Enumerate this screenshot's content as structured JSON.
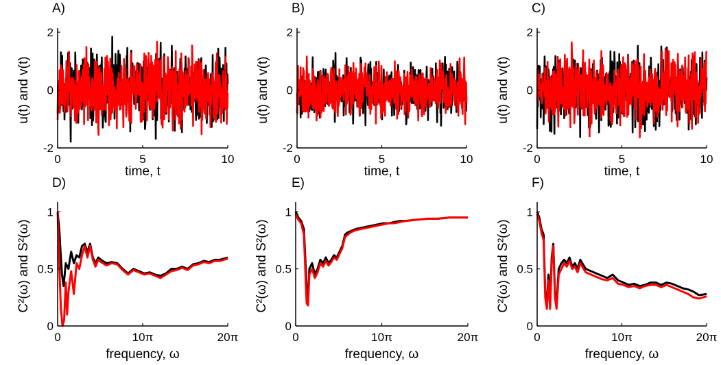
{
  "chart_data": [
    {
      "panel": "A)",
      "type": "line",
      "xlabel": "time, t",
      "ylabel": "u(t) and v(t)",
      "xlim": [
        0,
        10
      ],
      "ylim": [
        -2,
        2
      ],
      "xticks": [
        "0",
        "5",
        "10"
      ],
      "yticks": [
        "-2",
        "0",
        "2"
      ],
      "x": [
        0,
        10
      ],
      "series": [
        {
          "color": "#000000",
          "kind": "noise",
          "amplitude": 0.65,
          "seed": 11
        },
        {
          "color": "#ff0000",
          "kind": "noise",
          "amplitude": 0.6,
          "seed": 12
        }
      ]
    },
    {
      "panel": "B)",
      "type": "line",
      "xlabel": "time, t",
      "ylabel": "u(t) and v(t)",
      "xlim": [
        0,
        10
      ],
      "ylim": [
        -2,
        2
      ],
      "xticks": [
        "0",
        "5",
        "10"
      ],
      "yticks": [
        "-2",
        "0",
        "2"
      ],
      "x": [
        0,
        10
      ],
      "series": [
        {
          "color": "#000000",
          "kind": "noise",
          "amplitude": 0.45,
          "seed": 21
        },
        {
          "color": "#ff0000",
          "kind": "noise",
          "amplitude": 0.45,
          "seed": 22
        }
      ]
    },
    {
      "panel": "C)",
      "type": "line",
      "xlabel": "time, t",
      "ylabel": "u(t) and v(t)",
      "xlim": [
        0,
        10
      ],
      "ylim": [
        -2,
        2
      ],
      "xticks": [
        "0",
        "5",
        "10"
      ],
      "yticks": [
        "-2",
        "0",
        "2"
      ],
      "x": [
        0,
        10
      ],
      "series": [
        {
          "color": "#000000",
          "kind": "noise",
          "amplitude": 0.6,
          "seed": 31
        },
        {
          "color": "#ff0000",
          "kind": "noise",
          "amplitude": 0.6,
          "seed": 32
        }
      ]
    },
    {
      "panel": "D)",
      "type": "line",
      "xlabel": "frequency, ω",
      "ylabel": "C²(ω) and S²(ω)",
      "xlim": [
        0,
        62.83
      ],
      "ylim": [
        0,
        1.05
      ],
      "xticks": [
        "0",
        "10π",
        "20π"
      ],
      "yticks": [
        "0",
        "0.5",
        "1"
      ],
      "series": [
        {
          "color": "#000000",
          "x": [
            0,
            0.6,
            1.2,
            1.6,
            2.2,
            3,
            4,
            5,
            6,
            7,
            8,
            9,
            10,
            11,
            12,
            13,
            14,
            15,
            16,
            18,
            20,
            22,
            24,
            26,
            28,
            30,
            32,
            34,
            36,
            38,
            40,
            42,
            44,
            46,
            48,
            50,
            52,
            54,
            56,
            58,
            60,
            62.83
          ],
          "values": [
            1.0,
            0.85,
            0.6,
            0.45,
            0.35,
            0.55,
            0.5,
            0.65,
            0.55,
            0.62,
            0.6,
            0.7,
            0.72,
            0.65,
            0.72,
            0.6,
            0.55,
            0.6,
            0.58,
            0.55,
            0.56,
            0.55,
            0.5,
            0.46,
            0.5,
            0.48,
            0.46,
            0.47,
            0.45,
            0.44,
            0.46,
            0.5,
            0.5,
            0.52,
            0.5,
            0.54,
            0.55,
            0.57,
            0.56,
            0.58,
            0.58,
            0.6
          ]
        },
        {
          "color": "#ff0000",
          "x": [
            0,
            0.6,
            1.2,
            1.8,
            2.4,
            3,
            3.5,
            4,
            5,
            6,
            7,
            8,
            9,
            10,
            11,
            12,
            13,
            14,
            15,
            16,
            18,
            20,
            22,
            24,
            26,
            28,
            30,
            32,
            34,
            36,
            38,
            40,
            42,
            44,
            46,
            48,
            50,
            52,
            54,
            56,
            58,
            60,
            62.83
          ],
          "values": [
            1.0,
            0.55,
            0.15,
            0.0,
            0.05,
            0.38,
            0.1,
            0.3,
            0.48,
            0.28,
            0.55,
            0.5,
            0.62,
            0.7,
            0.6,
            0.7,
            0.58,
            0.52,
            0.58,
            0.56,
            0.53,
            0.55,
            0.54,
            0.49,
            0.45,
            0.49,
            0.47,
            0.45,
            0.46,
            0.44,
            0.42,
            0.45,
            0.48,
            0.49,
            0.51,
            0.49,
            0.53,
            0.54,
            0.56,
            0.55,
            0.57,
            0.57,
            0.59
          ]
        }
      ]
    },
    {
      "panel": "E)",
      "type": "line",
      "xlabel": "frequency, ω",
      "ylabel": "C²(ω) and S²(ω)",
      "xlim": [
        0,
        62.83
      ],
      "ylim": [
        0,
        1.05
      ],
      "xticks": [
        "0",
        "10π",
        "20π"
      ],
      "yticks": [
        "0",
        "0.5",
        "1"
      ],
      "series": [
        {
          "color": "#000000",
          "x": [
            0,
            1,
            2,
            3,
            3.5,
            4,
            4.5,
            5,
            6,
            7,
            8,
            9,
            10,
            11,
            12,
            13,
            14,
            15,
            16,
            17,
            18,
            19,
            20,
            22,
            24,
            26,
            28,
            30,
            32,
            34,
            36,
            38,
            40,
            44,
            48,
            52,
            56,
            60,
            62.83
          ],
          "values": [
            1.0,
            0.95,
            0.92,
            0.85,
            0.6,
            0.35,
            0.2,
            0.5,
            0.55,
            0.45,
            0.5,
            0.58,
            0.55,
            0.6,
            0.55,
            0.58,
            0.62,
            0.6,
            0.65,
            0.7,
            0.8,
            0.82,
            0.83,
            0.85,
            0.86,
            0.87,
            0.88,
            0.89,
            0.9,
            0.9,
            0.91,
            0.92,
            0.92,
            0.93,
            0.94,
            0.94,
            0.95,
            0.95,
            0.95
          ]
        },
        {
          "color": "#ff0000",
          "x": [
            0,
            1,
            2,
            3,
            3.5,
            4,
            4.5,
            5,
            6,
            7,
            8,
            9,
            10,
            11,
            12,
            13,
            14,
            15,
            16,
            17,
            18,
            19,
            20,
            22,
            24,
            26,
            28,
            30,
            32,
            34,
            36,
            38,
            40,
            44,
            48,
            52,
            56,
            60,
            62.83
          ],
          "values": [
            0.98,
            0.93,
            0.9,
            0.8,
            0.5,
            0.2,
            0.18,
            0.45,
            0.5,
            0.42,
            0.47,
            0.55,
            0.52,
            0.57,
            0.53,
            0.56,
            0.6,
            0.58,
            0.63,
            0.68,
            0.78,
            0.8,
            0.82,
            0.84,
            0.85,
            0.86,
            0.87,
            0.88,
            0.89,
            0.9,
            0.9,
            0.91,
            0.92,
            0.93,
            0.94,
            0.94,
            0.95,
            0.95,
            0.95
          ]
        }
      ]
    },
    {
      "panel": "F)",
      "type": "line",
      "xlabel": "frequency, ω",
      "ylabel": "C²(ω) and S²(ω)",
      "xlim": [
        0,
        62.83
      ],
      "ylim": [
        0,
        1.05
      ],
      "xticks": [
        "0",
        "10π",
        "20π"
      ],
      "yticks": [
        "0",
        "0.5",
        "1"
      ],
      "series": [
        {
          "color": "#000000",
          "x": [
            0,
            0.8,
            1.6,
            2.4,
            3,
            3.6,
            4.2,
            4.8,
            5.4,
            6,
            6.6,
            7.2,
            8,
            9,
            10,
            11,
            12,
            13,
            14,
            15,
            16,
            18,
            20,
            22,
            24,
            26,
            28,
            30,
            32,
            34,
            36,
            38,
            40,
            42,
            44,
            46,
            48,
            50,
            52,
            54,
            56,
            58,
            60,
            62.83
          ],
          "values": [
            1.0,
            0.95,
            0.85,
            0.8,
            0.3,
            0.2,
            0.45,
            0.2,
            0.6,
            0.72,
            0.3,
            0.2,
            0.5,
            0.55,
            0.58,
            0.55,
            0.6,
            0.52,
            0.55,
            0.5,
            0.58,
            0.5,
            0.48,
            0.46,
            0.44,
            0.42,
            0.45,
            0.4,
            0.38,
            0.36,
            0.37,
            0.35,
            0.36,
            0.38,
            0.38,
            0.36,
            0.38,
            0.37,
            0.35,
            0.33,
            0.32,
            0.3,
            0.27,
            0.28
          ]
        },
        {
          "color": "#ff0000",
          "x": [
            0,
            0.8,
            1.6,
            2.4,
            3,
            3.6,
            4.2,
            4.8,
            5.4,
            6,
            6.6,
            7.2,
            8,
            9,
            10,
            11,
            12,
            13,
            14,
            15,
            16,
            18,
            20,
            22,
            24,
            26,
            28,
            30,
            32,
            34,
            36,
            38,
            40,
            42,
            44,
            46,
            48,
            50,
            52,
            54,
            56,
            58,
            60,
            62.83
          ],
          "values": [
            0.98,
            0.92,
            0.82,
            0.75,
            0.25,
            0.15,
            0.4,
            0.15,
            0.55,
            0.7,
            0.25,
            0.15,
            0.45,
            0.5,
            0.55,
            0.52,
            0.57,
            0.5,
            0.52,
            0.47,
            0.55,
            0.47,
            0.45,
            0.43,
            0.41,
            0.4,
            0.42,
            0.37,
            0.36,
            0.34,
            0.35,
            0.33,
            0.35,
            0.36,
            0.36,
            0.34,
            0.36,
            0.34,
            0.32,
            0.3,
            0.28,
            0.25,
            0.24,
            0.26
          ]
        }
      ]
    }
  ]
}
